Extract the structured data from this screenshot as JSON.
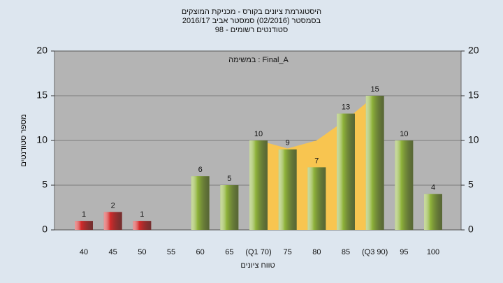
{
  "chart_data": {
    "type": "bar",
    "title": "היסטוגרמת ציונים בקורס - מכניקת המוצקים",
    "subtitle": [
      "בסמסטר  (02/2016)  סמסטר אביב 2016/17",
      "סטודנטים רשומים - 98"
    ],
    "annotation": "במשימה : Final_A",
    "x_label": "טווח ציונים",
    "y_label": "מספר סטודנטים",
    "categories": [
      "40",
      "45",
      "50",
      "55",
      "60",
      "65",
      "(Q1 70)",
      "75",
      "80",
      "85",
      "(Q3 90)",
      "95",
      "100"
    ],
    "values": [
      1,
      2,
      1,
      null,
      6,
      5,
      10,
      9,
      7,
      13,
      15,
      10,
      4
    ],
    "colors": [
      "#d42a2a",
      "#d42a2a",
      "#d42a2a",
      "#d42a2a",
      "#8fb33a",
      "#8fb33a",
      "#8fb33a",
      "#8fb33a",
      "#8fb33a",
      "#8fb33a",
      "#8fb33a",
      "#8fb33a",
      "#8fb33a"
    ],
    "area": {
      "color": "#f8c550",
      "values": [
        null,
        null,
        null,
        null,
        null,
        null,
        10,
        9.1,
        10,
        12.3,
        15,
        null,
        null
      ]
    },
    "ylim": [
      0,
      20
    ],
    "yticks": [
      0,
      5,
      10,
      15,
      20
    ],
    "y2lim": [
      0,
      20
    ],
    "y2ticks": [
      0,
      5,
      10,
      15,
      20
    ],
    "grid": true
  }
}
